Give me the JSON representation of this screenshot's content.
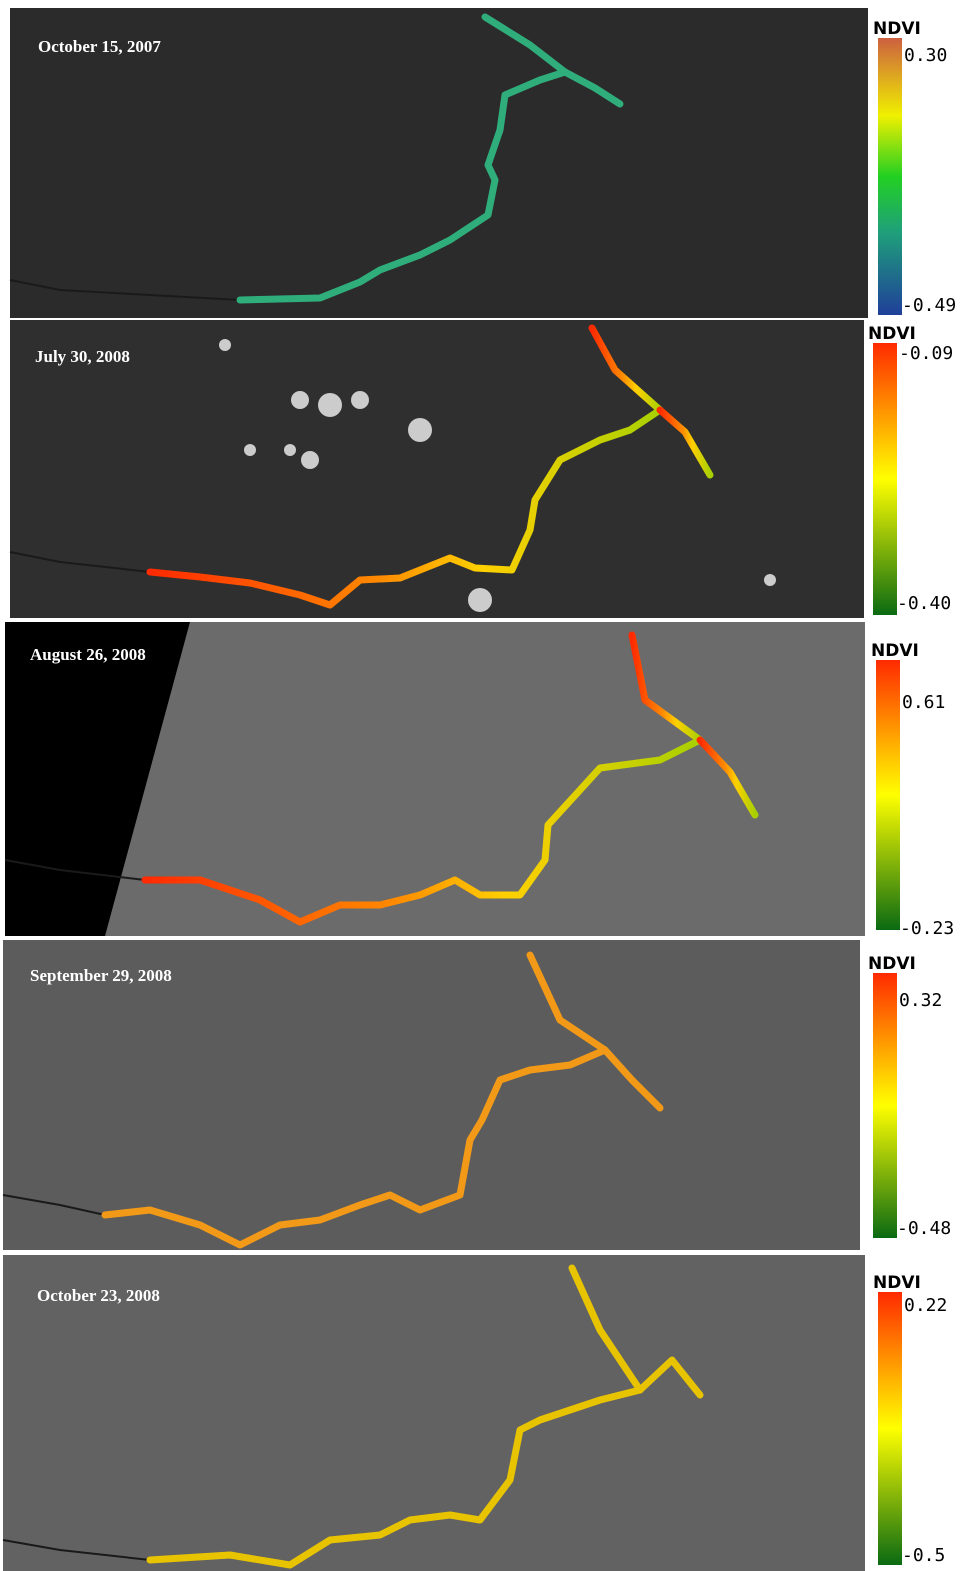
{
  "panels": [
    {
      "date": "October 15, 2007",
      "colorbar": {
        "title": "NDVI",
        "max": "0.30",
        "min": "-0.49"
      }
    },
    {
      "date": "July 30, 2008",
      "colorbar": {
        "title": "NDVI",
        "max": "-0.09",
        "min": "-0.40"
      }
    },
    {
      "date": "August 26, 2008",
      "colorbar": {
        "title": "NDVI",
        "max": "0.61",
        "min": "-0.23"
      }
    },
    {
      "date": "September 29, 2008",
      "colorbar": {
        "title": "NDVI",
        "max": "0.32",
        "min": "-0.48"
      }
    },
    {
      "date": "October 23, 2008",
      "colorbar": {
        "title": "NDVI",
        "max": "0.22",
        "min": "-0.5"
      }
    }
  ]
}
